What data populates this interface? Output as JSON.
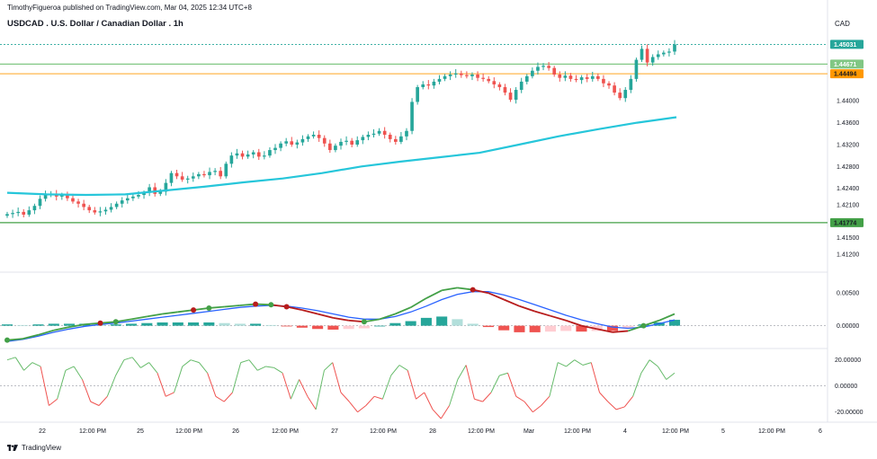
{
  "header": {
    "published": "TimothyFigueroa published on TradingView.com, Mar 04, 2025 12:34 UTC+8",
    "symbol": "USDCAD . U.S. Dollar / Canadian Dollar . 1h",
    "currency": "CAD"
  },
  "footer": {
    "brand": "TradingView"
  },
  "colors": {
    "up": "#26a69a",
    "down": "#ef5350",
    "ma": "#26c6da",
    "macd_fast": "#43a047",
    "macd_slow": "#2962ff",
    "macd_dark_red": "#b71c1c",
    "osc_up": "#66bb6a",
    "osc_down": "#ef5350",
    "line_green": "#81c784",
    "line_orange": "#ffb74d"
  },
  "chart_data": [
    {
      "type": "candlestick",
      "title": "USDCAD . U.S. Dollar / Canadian Dollar . 1h",
      "y_ticks": [
        "1.44000",
        "1.43600",
        "1.43200",
        "1.42800",
        "1.42400",
        "1.42100",
        "1.41500",
        "1.41200"
      ],
      "x_ticks": [
        "22",
        "12:00 PM",
        "25",
        "12:00 PM",
        "26",
        "12:00 PM",
        "27",
        "12:00 PM",
        "28",
        "12:00 PM",
        "Mar",
        "12:00 PM",
        "4",
        "12:00 PM",
        "5",
        "12:00 PM",
        "6"
      ],
      "price_labels": [
        {
          "value": "1.45031",
          "color": "#26a69a"
        },
        {
          "value": "1.44671",
          "color": "#81c784"
        },
        {
          "value": "1.44494",
          "color": "#ff9800"
        },
        {
          "value": "1.41774",
          "color": "#43a047"
        }
      ],
      "ylim": [
        1.41,
        1.4535
      ],
      "close": [
        1.4193,
        1.4195,
        1.4197,
        1.4192,
        1.42,
        1.4208,
        1.4221,
        1.4228,
        1.423,
        1.4225,
        1.4228,
        1.4222,
        1.4216,
        1.4212,
        1.4206,
        1.42,
        1.4196,
        1.4198,
        1.4201,
        1.4206,
        1.4212,
        1.4218,
        1.4222,
        1.4225,
        1.4228,
        1.4232,
        1.4242,
        1.423,
        1.4234,
        1.425,
        1.4268,
        1.4262,
        1.4256,
        1.4258,
        1.4262,
        1.4266,
        1.4264,
        1.427,
        1.4272,
        1.4262,
        1.4285,
        1.43,
        1.4304,
        1.4298,
        1.4302,
        1.4306,
        1.4298,
        1.43,
        1.431,
        1.4314,
        1.4322,
        1.4326,
        1.432,
        1.4324,
        1.433,
        1.4335,
        1.4338,
        1.4332,
        1.4322,
        1.431,
        1.4318,
        1.4325,
        1.4327,
        1.432,
        1.4328,
        1.4334,
        1.4338,
        1.434,
        1.4345,
        1.4338,
        1.433,
        1.4325,
        1.4335,
        1.4345,
        1.4398,
        1.4425,
        1.443,
        1.4428,
        1.4435,
        1.444,
        1.4445,
        1.4448,
        1.445,
        1.4447,
        1.4445,
        1.4448,
        1.4442,
        1.444,
        1.4436,
        1.443,
        1.4425,
        1.4415,
        1.4402,
        1.442,
        1.4435,
        1.4445,
        1.4455,
        1.4462,
        1.4464,
        1.446,
        1.4448,
        1.4442,
        1.4446,
        1.444,
        1.4438,
        1.4443,
        1.444,
        1.4445,
        1.444,
        1.4432,
        1.4428,
        1.4415,
        1.4405,
        1.442,
        1.444,
        1.4475,
        1.4495,
        1.447,
        1.448,
        1.4485,
        1.4488,
        1.449,
        1.4503
      ],
      "ma": [
        1.4232,
        1.4229,
        1.4228,
        1.4229,
        1.4236,
        1.4243,
        1.4251,
        1.4258,
        1.4268,
        1.428,
        1.4289,
        1.4297,
        1.4305,
        1.432,
        1.4335,
        1.4348,
        1.436,
        1.437
      ],
      "horizontal_lines": [
        1.45031,
        1.44671,
        1.44494,
        1.41774
      ]
    },
    {
      "type": "macd",
      "y_ticks": [
        "0.00500",
        "0.00000"
      ],
      "fast": [
        -0.0022,
        -0.002,
        -0.0014,
        -0.0007,
        -0.0002,
        0.0002,
        0.0004,
        0.0006,
        0.001,
        0.0014,
        0.0018,
        0.0021,
        0.0024,
        0.0027,
        0.0029,
        0.0031,
        0.0033,
        0.0032,
        0.0029,
        0.0024,
        0.0018,
        0.0012,
        0.0008,
        0.0006,
        0.001,
        0.0018,
        0.0028,
        0.0042,
        0.0054,
        0.0058,
        0.0055,
        0.005,
        0.004,
        0.003,
        0.0022,
        0.0015,
        0.0008,
        0.0,
        -0.0005,
        -0.001,
        -0.0008,
        0.0,
        0.0008,
        0.0018
      ],
      "slow": [
        -0.0024,
        -0.0021,
        -0.0016,
        -0.001,
        -0.0005,
        -0.0001,
        0.0002,
        0.0004,
        0.0007,
        0.001,
        0.0013,
        0.0016,
        0.0019,
        0.0022,
        0.0025,
        0.0028,
        0.003,
        0.0031,
        0.003,
        0.0027,
        0.0023,
        0.0018,
        0.0013,
        0.001,
        0.001,
        0.0014,
        0.0021,
        0.003,
        0.004,
        0.0048,
        0.0052,
        0.0052,
        0.0047,
        0.004,
        0.0032,
        0.0024,
        0.0016,
        0.0009,
        0.0003,
        -0.0002,
        -0.0004,
        -0.0002,
        0.0003,
        0.0009
      ],
      "hist": [
        0.0002,
        0.0001,
        0.0002,
        0.0003,
        0.0003,
        0.0003,
        0.0002,
        0.0002,
        0.0003,
        0.0004,
        0.0005,
        0.0005,
        0.0005,
        0.0005,
        0.0004,
        0.0003,
        0.0003,
        0.0001,
        -0.0001,
        -0.0003,
        -0.0005,
        -0.0006,
        -0.0005,
        -0.0004,
        0.0,
        0.0004,
        0.0007,
        0.0012,
        0.0014,
        0.001,
        0.0003,
        -0.0002,
        -0.0007,
        -0.001,
        -0.001,
        -0.0009,
        -0.0008,
        -0.0009,
        -0.0008,
        -0.0008,
        -0.0004,
        0.0002,
        0.0005,
        0.0009
      ],
      "signal_dots": [
        {
          "index": 0,
          "color": "#43a047"
        },
        {
          "index": 6,
          "color": "#b71c1c"
        },
        {
          "index": 7,
          "color": "#43a047"
        },
        {
          "index": 12,
          "color": "#b71c1c"
        },
        {
          "index": 13,
          "color": "#43a047"
        },
        {
          "index": 16,
          "color": "#b71c1c"
        },
        {
          "index": 17,
          "color": "#43a047"
        },
        {
          "index": 18,
          "color": "#b71c1c"
        },
        {
          "index": 23,
          "color": "#43a047"
        },
        {
          "index": 30,
          "color": "#b71c1c"
        },
        {
          "index": 41,
          "color": "#43a047"
        }
      ]
    },
    {
      "type": "line",
      "y_ticks": [
        "20.00000",
        "0.00000",
        "-20.00000"
      ],
      "values": [
        20,
        22,
        12,
        18,
        15,
        -15,
        -10,
        12,
        15,
        5,
        -12,
        -15,
        -8,
        8,
        20,
        22,
        14,
        18,
        10,
        -8,
        -5,
        15,
        20,
        18,
        10,
        -8,
        -12,
        -5,
        18,
        20,
        12,
        15,
        14,
        10,
        -10,
        5,
        -8,
        -18,
        12,
        18,
        -5,
        -12,
        -20,
        -15,
        -8,
        -10,
        8,
        16,
        12,
        -10,
        -5,
        -18,
        -25,
        -15,
        5,
        16,
        -10,
        -12,
        -5,
        8,
        10,
        -8,
        -12,
        -20,
        -15,
        -8,
        18,
        15,
        20,
        16,
        18,
        -5,
        -12,
        -18,
        -16,
        -8,
        10,
        20,
        15,
        5,
        10
      ],
      "ylim": [
        -25,
        26
      ]
    }
  ]
}
